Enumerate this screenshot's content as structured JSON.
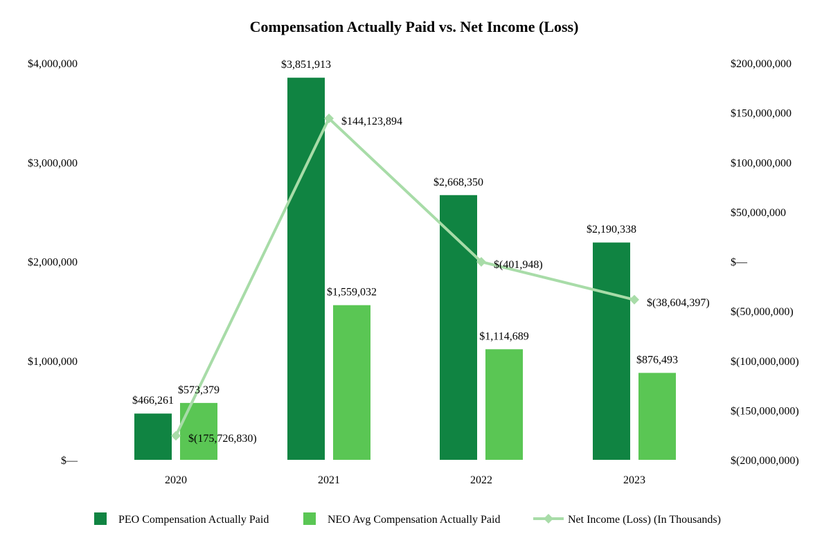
{
  "chart_data": {
    "type": "bar",
    "title": "Compensation Actually Paid vs. Net Income (Loss)",
    "categories": [
      "2020",
      "2021",
      "2022",
      "2023"
    ],
    "series": [
      {
        "name": "PEO Compensation Actually Paid",
        "kind": "bar",
        "axis": "left",
        "color": "#108442",
        "values": [
          466261,
          3851913,
          2668350,
          2190338
        ],
        "labels": [
          "$466,261",
          "$3,851,913",
          "$2,668,350",
          "$2,190,338"
        ]
      },
      {
        "name": "NEO Avg Compensation Actually Paid",
        "kind": "bar",
        "axis": "left",
        "color": "#5ac654",
        "values": [
          573379,
          1559032,
          1114689,
          876493
        ],
        "labels": [
          "$573,379",
          "$1,559,032",
          "$1,114,689",
          "$876,493"
        ]
      },
      {
        "name": "Net Income (Loss) (In Thousands)",
        "kind": "line",
        "axis": "right",
        "color": "#a8dca8",
        "values": [
          -175726830,
          144123894,
          -401948,
          -38604397
        ],
        "labels": [
          "$(175,726,830)",
          "$144,123,894",
          "$(401,948)",
          "$(38,604,397)"
        ]
      }
    ],
    "left_axis": {
      "ylim": [
        0,
        4000000
      ],
      "ticks": [
        0,
        1000000,
        2000000,
        3000000,
        4000000
      ],
      "tick_labels": [
        "$—",
        "$1,000,000",
        "$2,000,000",
        "$3,000,000",
        "$4,000,000"
      ]
    },
    "right_axis": {
      "ylim": [
        -200000000,
        200000000
      ],
      "ticks": [
        -200000000,
        -150000000,
        -100000000,
        -50000000,
        0,
        50000000,
        100000000,
        150000000,
        200000000
      ],
      "tick_labels": [
        "$(200,000,000)",
        "$(150,000,000)",
        "$(100,000,000)",
        "$(50,000,000)",
        "$—",
        "$50,000,000",
        "$100,000,000",
        "$150,000,000",
        "$200,000,000"
      ]
    },
    "grid": false,
    "legend_position": "bottom"
  }
}
